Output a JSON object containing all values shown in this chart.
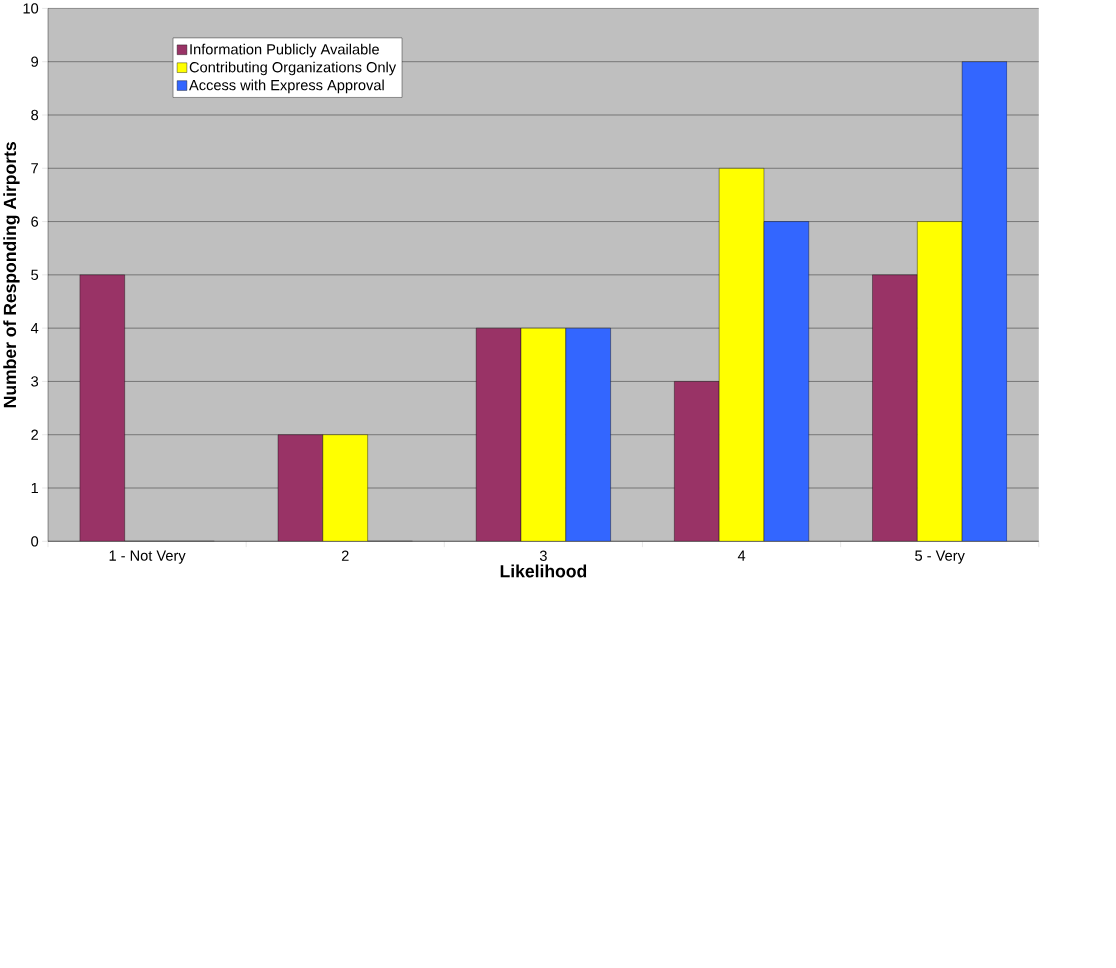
{
  "chart_data": {
    "type": "bar",
    "xlabel": "Likelihood",
    "ylabel": "Number of Responding Airports",
    "categories": [
      "1 - Not Very",
      "2",
      "3",
      "4",
      "5 - Very"
    ],
    "series": [
      {
        "name": "Information Publicly Available",
        "color": "#993366",
        "values": [
          5,
          2,
          4,
          3,
          5
        ]
      },
      {
        "name": "Contributing Organizations Only",
        "color": "#ffff00",
        "values": [
          0,
          2,
          4,
          7,
          6
        ]
      },
      {
        "name": "Access with Express Approval",
        "color": "#3366ff",
        "values": [
          0,
          0,
          4,
          6,
          9
        ]
      }
    ],
    "ylim": [
      0,
      10
    ],
    "yticks": [
      0,
      1,
      2,
      3,
      4,
      5,
      6,
      7,
      8,
      9,
      10
    ],
    "grid": "y",
    "legend": "top left"
  }
}
